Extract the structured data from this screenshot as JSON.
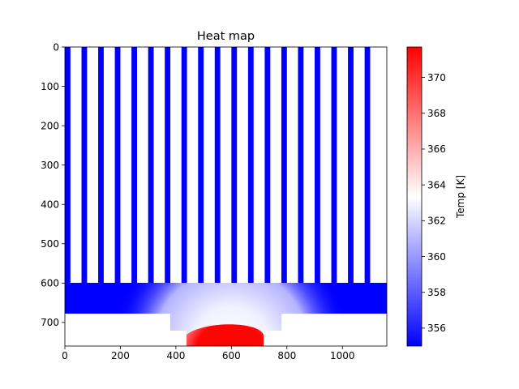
{
  "chart_data": {
    "type": "heatmap",
    "title": "Heat map",
    "xlabel": "",
    "ylabel": "",
    "xlim": [
      0,
      1160
    ],
    "ylim": [
      760,
      0
    ],
    "x_ticks": [
      0,
      200,
      400,
      600,
      800,
      1000
    ],
    "y_ticks": [
      0,
      100,
      200,
      300,
      400,
      500,
      600,
      700
    ],
    "colorbar": {
      "label": "Temp [K]",
      "min": 355.0,
      "max": 371.7,
      "ticks": [
        356,
        358,
        360,
        362,
        364,
        366,
        368,
        370
      ],
      "colormap": "bwr"
    },
    "fins": {
      "count": 19,
      "pitch": 60,
      "fin_width": 20,
      "top": 0,
      "bottom": 600,
      "temperature": 355
    },
    "base_plate": {
      "x": [
        0,
        1160
      ],
      "y": [
        600,
        680
      ],
      "temperature_range": [
        355,
        362
      ]
    },
    "step": {
      "x": [
        380,
        780
      ],
      "y": [
        680,
        720
      ]
    },
    "source": {
      "x": [
        440,
        720
      ],
      "y": [
        720,
        760
      ],
      "center_x": 580,
      "temperature": 371.7
    },
    "colors": {
      "cold": "#0000ff",
      "neutral": "#ffffff",
      "hot": "#ff0000"
    }
  }
}
